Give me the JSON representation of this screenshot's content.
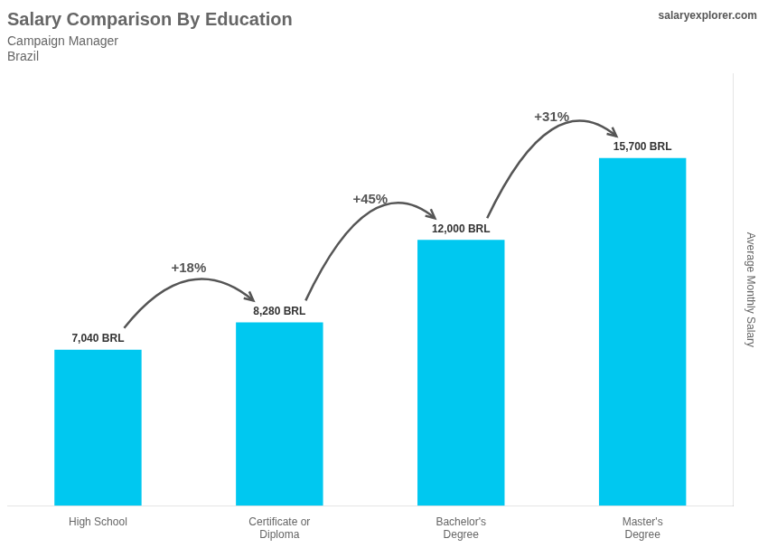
{
  "chart_data": {
    "type": "bar",
    "title": "Salary Comparison By Education",
    "subtitle": [
      "Campaign Manager",
      "Brazil"
    ],
    "ylabel": "Average Monthly Salary",
    "categories": [
      "High School",
      "Certificate or\nDiploma",
      "Bachelor's\nDegree",
      "Master's\nDegree"
    ],
    "values": [
      7040,
      8280,
      12000,
      15700
    ],
    "value_labels": [
      "7,040 BRL",
      "8,280 BRL",
      "12,000 BRL",
      "15,700 BRL"
    ],
    "data_labels": true,
    "color": "#00c8f0",
    "ylim": [
      0,
      19500
    ],
    "yticks": [],
    "tick_labels": "x",
    "grid": false,
    "annotations": [
      {
        "text": "salaryexplorer.com"
      },
      {
        "text": "+18%",
        "from": "High School",
        "to": "Certificate or\nDiploma"
      },
      {
        "text": "+45%",
        "from": "Certificate or\nDiploma",
        "to": "Bachelor's\nDegree"
      },
      {
        "text": "+31%",
        "from": "Bachelor's\nDegree",
        "to": "Master's\nDegree"
      }
    ]
  }
}
